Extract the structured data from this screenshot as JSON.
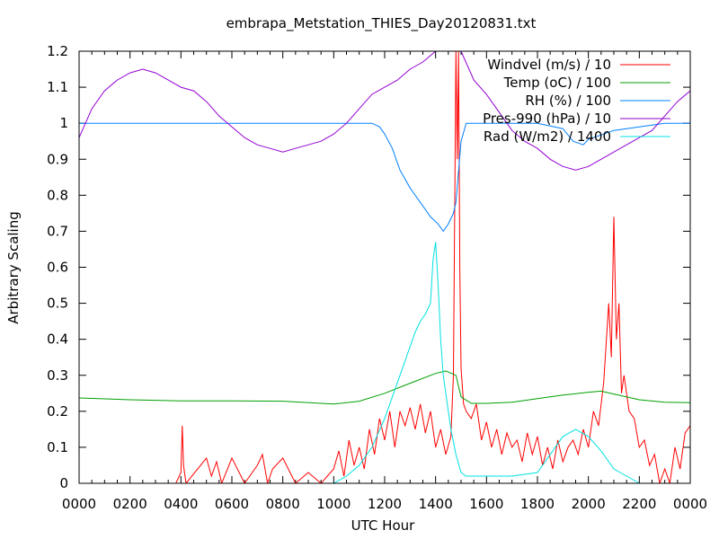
{
  "chart_data": {
    "type": "line",
    "title": "embrapa_Metstation_THIES_Day20120831.txt",
    "xlabel": "UTC Hour",
    "ylabel": "Arbitrary Scaling",
    "xlim": [
      0,
      2400
    ],
    "ylim": [
      0,
      1.2
    ],
    "x_ticks": [
      "0000",
      "0200",
      "0400",
      "0600",
      "0800",
      "1000",
      "1200",
      "1400",
      "1600",
      "1800",
      "2000",
      "2200",
      "0000"
    ],
    "y_ticks": [
      "0",
      "0.1",
      "0.2",
      "0.3",
      "0.4",
      "0.5",
      "0.6",
      "0.7",
      "0.8",
      "0.9",
      "1",
      "1.1",
      "1.2"
    ],
    "grid": false,
    "legend_position": "top-right",
    "series": [
      {
        "name": "Windvel (m/s) / 10",
        "color": "#ff0000",
        "x": [
          0,
          380,
          400,
          405,
          410,
          420,
          500,
          520,
          540,
          560,
          600,
          650,
          700,
          720,
          740,
          760,
          800,
          850,
          900,
          950,
          1000,
          1020,
          1040,
          1060,
          1080,
          1100,
          1120,
          1140,
          1160,
          1180,
          1200,
          1220,
          1240,
          1260,
          1280,
          1300,
          1320,
          1340,
          1360,
          1380,
          1400,
          1420,
          1440,
          1460,
          1470,
          1480,
          1485,
          1490,
          1495,
          1500,
          1510,
          1520,
          1540,
          1560,
          1580,
          1600,
          1620,
          1640,
          1660,
          1680,
          1700,
          1720,
          1740,
          1760,
          1780,
          1800,
          1820,
          1840,
          1860,
          1880,
          1900,
          1920,
          1940,
          1960,
          1980,
          2000,
          2020,
          2040,
          2060,
          2080,
          2090,
          2100,
          2110,
          2120,
          2130,
          2140,
          2160,
          2180,
          2200,
          2220,
          2240,
          2260,
          2280,
          2300,
          2320,
          2340,
          2360,
          2380,
          2400
        ],
        "y": [
          0,
          0,
          0.03,
          0.16,
          0.05,
          0,
          0.07,
          0.02,
          0.06,
          0,
          0.07,
          0,
          0.05,
          0.08,
          0,
          0.04,
          0.07,
          0,
          0.03,
          0,
          0.04,
          0.09,
          0.02,
          0.12,
          0.05,
          0.1,
          0.04,
          0.15,
          0.08,
          0.18,
          0.12,
          0.2,
          0.1,
          0.2,
          0.16,
          0.21,
          0.15,
          0.22,
          0.14,
          0.2,
          0.1,
          0.15,
          0.08,
          0.13,
          0.3,
          1.2,
          0.9,
          1.2,
          0.6,
          0.32,
          0.22,
          0.2,
          0.18,
          0.22,
          0.12,
          0.17,
          0.1,
          0.15,
          0.08,
          0.14,
          0.1,
          0.12,
          0.06,
          0.14,
          0.08,
          0.13,
          0.05,
          0.1,
          0.04,
          0.12,
          0.06,
          0.1,
          0.12,
          0.08,
          0.15,
          0.1,
          0.2,
          0.16,
          0.28,
          0.5,
          0.35,
          0.74,
          0.4,
          0.5,
          0.25,
          0.3,
          0.2,
          0.18,
          0.1,
          0.12,
          0.05,
          0.08,
          0,
          0.04,
          0,
          0.1,
          0.04,
          0.14,
          0.16
        ]
      },
      {
        "name": "Temp (oC) / 100",
        "color": "#00a000",
        "x": [
          0,
          200,
          400,
          600,
          800,
          1000,
          1100,
          1200,
          1300,
          1400,
          1440,
          1480,
          1500,
          1540,
          1600,
          1700,
          1800,
          1900,
          2000,
          2050,
          2100,
          2200,
          2300,
          2400
        ],
        "y": [
          0.237,
          0.232,
          0.229,
          0.229,
          0.228,
          0.22,
          0.228,
          0.25,
          0.278,
          0.305,
          0.312,
          0.3,
          0.24,
          0.222,
          0.222,
          0.225,
          0.235,
          0.245,
          0.253,
          0.256,
          0.248,
          0.232,
          0.225,
          0.224
        ]
      },
      {
        "name": "RH (%) / 100",
        "color": "#0080ff",
        "x": [
          0,
          400,
          800,
          1000,
          1150,
          1180,
          1200,
          1230,
          1260,
          1300,
          1340,
          1380,
          1410,
          1430,
          1450,
          1470,
          1480,
          1500,
          1520,
          1560,
          1600,
          1700,
          1800,
          1900,
          1940,
          1980,
          2000,
          2060,
          2100,
          2200,
          2300,
          2400
        ],
        "y": [
          1,
          1,
          1,
          1,
          1,
          0.99,
          0.97,
          0.93,
          0.87,
          0.82,
          0.78,
          0.74,
          0.72,
          0.7,
          0.72,
          0.75,
          0.78,
          0.95,
          1,
          1,
          1,
          1,
          1,
          0.985,
          0.95,
          0.94,
          0.955,
          0.97,
          0.98,
          0.99,
          1,
          1
        ]
      },
      {
        "name": "Pres-990 (hPa) / 10",
        "color": "#9400d3",
        "x": [
          0,
          50,
          100,
          150,
          200,
          250,
          300,
          350,
          400,
          450,
          500,
          550,
          600,
          650,
          700,
          750,
          800,
          850,
          900,
          950,
          1000,
          1050,
          1100,
          1150,
          1200,
          1250,
          1300,
          1350,
          1400,
          1440,
          1500,
          1550,
          1600,
          1650,
          1700,
          1750,
          1800,
          1850,
          1900,
          1950,
          2000,
          2050,
          2100,
          2150,
          2200,
          2250,
          2300,
          2350,
          2400
        ],
        "y": [
          0.96,
          1.04,
          1.09,
          1.12,
          1.14,
          1.15,
          1.14,
          1.12,
          1.1,
          1.09,
          1.06,
          1.02,
          0.99,
          0.96,
          0.94,
          0.93,
          0.92,
          0.93,
          0.94,
          0.95,
          0.97,
          1.0,
          1.04,
          1.08,
          1.1,
          1.12,
          1.15,
          1.17,
          1.2,
          1.2,
          1.2,
          1.12,
          1.08,
          1.03,
          0.98,
          0.95,
          0.93,
          0.9,
          0.88,
          0.87,
          0.88,
          0.9,
          0.92,
          0.94,
          0.96,
          0.98,
          1.02,
          1.06,
          1.09
        ]
      },
      {
        "name": "Rad (W/m2) / 1400",
        "color": "#00e0e0",
        "x": [
          0,
          1000,
          1050,
          1100,
          1150,
          1200,
          1250,
          1280,
          1300,
          1320,
          1340,
          1360,
          1380,
          1390,
          1400,
          1410,
          1420,
          1430,
          1440,
          1460,
          1480,
          1500,
          1520,
          1540,
          1560,
          1600,
          1700,
          1800,
          1850,
          1900,
          1950,
          2000,
          2050,
          2100,
          2150,
          2200,
          2400
        ],
        "y": [
          0,
          0,
          0.02,
          0.05,
          0.1,
          0.18,
          0.28,
          0.34,
          0.38,
          0.42,
          0.45,
          0.47,
          0.5,
          0.62,
          0.67,
          0.55,
          0.4,
          0.3,
          0.25,
          0.15,
          0.08,
          0.03,
          0.02,
          0.02,
          0.02,
          0.02,
          0.02,
          0.03,
          0.08,
          0.13,
          0.15,
          0.13,
          0.09,
          0.04,
          0.02,
          0,
          0
        ]
      }
    ]
  }
}
